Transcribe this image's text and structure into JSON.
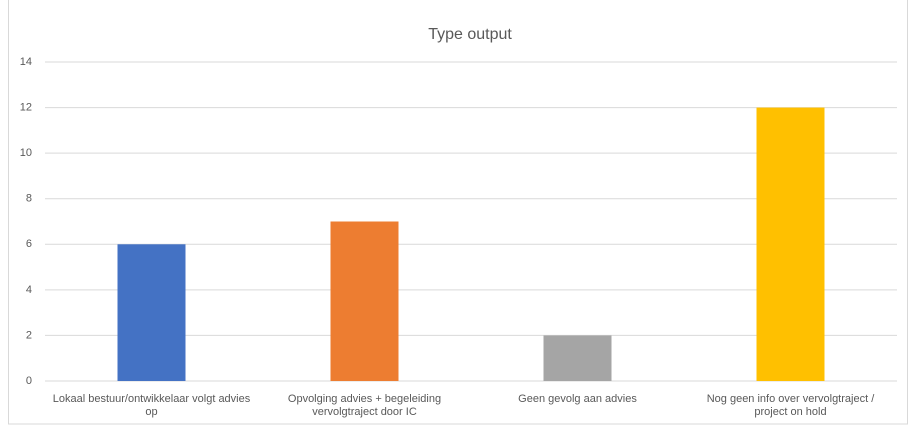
{
  "chart_data": {
    "type": "bar",
    "title": "Type output",
    "categories": [
      "Lokaal bestuur/ontwikkelaar volgt advies op",
      "Opvolging advies + begeleiding vervolgtraject door IC",
      "Geen gevolg aan advies",
      "Nog geen info over vervolgtraject / project on hold"
    ],
    "values": [
      6,
      7,
      2,
      12
    ],
    "colors": [
      "#4472c4",
      "#ed7d31",
      "#a5a5a5",
      "#ffc000"
    ],
    "ylim": [
      0,
      14
    ],
    "yticks": [
      0,
      2,
      4,
      6,
      8,
      10,
      12,
      14
    ],
    "grid": true
  }
}
